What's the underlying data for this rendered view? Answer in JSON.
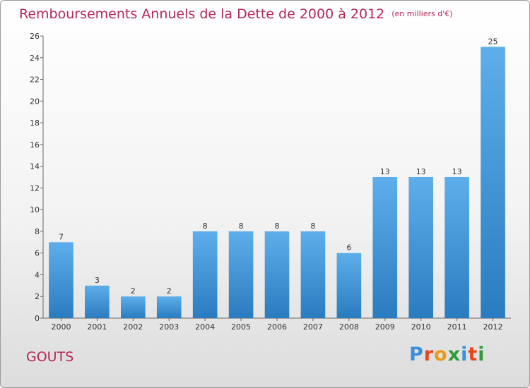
{
  "title": "Remboursements Annuels de la Dette de 2000 à 2012",
  "unit": "(en milliers d'€)",
  "commune": "GOUTS",
  "logo": {
    "text": "Proxiti",
    "letter_colors": [
      "#3a8fd8",
      "#e8451b",
      "#e89a1b",
      "#2f9e3a",
      "#3a8fd8",
      "#e8451b",
      "#2f9e3a"
    ]
  },
  "colors": {
    "title": "#b5285a",
    "bar_top": "#5daeea",
    "bar_bottom": "#2a7cc0"
  },
  "chart_data": {
    "type": "bar",
    "categories": [
      "2000",
      "2001",
      "2002",
      "2003",
      "2004",
      "2005",
      "2006",
      "2007",
      "2008",
      "2009",
      "2010",
      "2011",
      "2012"
    ],
    "values": [
      7,
      3,
      2,
      2,
      8,
      8,
      8,
      8,
      6,
      13,
      13,
      13,
      25
    ],
    "ylim": [
      0,
      26
    ],
    "yticks": [
      0,
      2,
      4,
      6,
      8,
      10,
      12,
      14,
      16,
      18,
      20,
      22,
      24,
      26
    ],
    "grid": false,
    "xlabel": "",
    "ylabel": ""
  }
}
